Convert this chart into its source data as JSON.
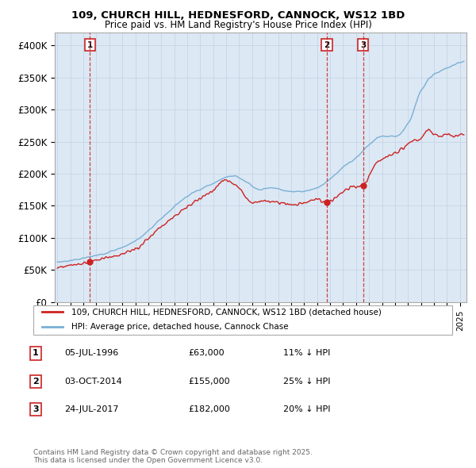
{
  "title_line1": "109, CHURCH HILL, HEDNESFORD, CANNOCK, WS12 1BD",
  "title_line2": "Price paid vs. HM Land Registry's House Price Index (HPI)",
  "ylabel": "",
  "xlim_start": 1993.8,
  "xlim_end": 2025.5,
  "ylim_min": 0,
  "ylim_max": 420000,
  "hpi_color": "#7ab0d4",
  "price_color": "#cc2222",
  "annotation_color": "#cc2222",
  "grid_color": "#c8d8e8",
  "background_color": "#dce8f4",
  "sale_points": [
    {
      "year": 1996.5,
      "price": 63000,
      "label": "1",
      "date": "05-JUL-1996",
      "pct": "11% ↓ HPI"
    },
    {
      "year": 2014.75,
      "price": 155000,
      "label": "2",
      "date": "03-OCT-2014",
      "pct": "25% ↓ HPI"
    },
    {
      "year": 2017.55,
      "price": 182000,
      "label": "3",
      "date": "24-JUL-2017",
      "pct": "20% ↓ HPI"
    }
  ],
  "legend_line1": "109, CHURCH HILL, HEDNESFORD, CANNOCK, WS12 1BD (detached house)",
  "legend_line2": "HPI: Average price, detached house, Cannock Chase",
  "footnote": "Contains HM Land Registry data © Crown copyright and database right 2025.\nThis data is licensed under the Open Government Licence v3.0.",
  "yticks": [
    0,
    50000,
    100000,
    150000,
    200000,
    250000,
    300000,
    350000,
    400000
  ],
  "ytick_labels": [
    "£0",
    "£50K",
    "£100K",
    "£150K",
    "£200K",
    "£250K",
    "£300K",
    "£350K",
    "£400K"
  ]
}
